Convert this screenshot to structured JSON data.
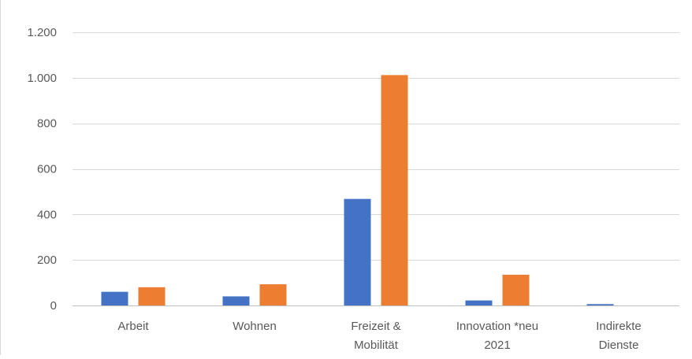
{
  "colors": {
    "series1": "#4472C4",
    "series2": "#ED7D31",
    "gridline": "#D9D9D9",
    "axis": "#BFBFBF",
    "text": "#595959"
  },
  "chart_data": {
    "type": "bar",
    "categories": [
      [
        "Arbeit"
      ],
      [
        "Wohnen"
      ],
      [
        "Freizeit &",
        "Mobilität"
      ],
      [
        "Innovation *neu",
        "2021"
      ],
      [
        "Indirekte",
        "Dienste"
      ]
    ],
    "series": [
      {
        "values": [
          60,
          40,
          468,
          22,
          6
        ]
      },
      {
        "values": [
          80,
          93,
          1012,
          135,
          0
        ]
      }
    ],
    "ylim": [
      0,
      1200
    ],
    "yticks": [
      0,
      200,
      400,
      600,
      800,
      1000,
      1200
    ],
    "ytick_labels": [
      "0",
      "200",
      "400",
      "600",
      "800",
      "1.000",
      "1.200"
    ],
    "grid": true,
    "legend": "none",
    "title": "",
    "xlabel": "",
    "ylabel": ""
  }
}
